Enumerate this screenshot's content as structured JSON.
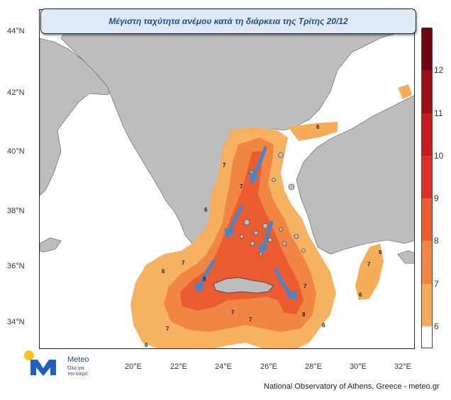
{
  "title": "Μέγιστη ταχύτητα ανέμου κατά τη διάρκεια της Τρίτης 20/12",
  "lat_labels": [
    "44°N",
    "42°N",
    "40°N",
    "38°N",
    "36°N",
    "34°N"
  ],
  "lon_labels": [
    "20°E",
    "22°E",
    "24°E",
    "26°E",
    "28°E",
    "30°E",
    "32°E"
  ],
  "colorbar": {
    "values": [
      6,
      7,
      8,
      9,
      10,
      11,
      12
    ],
    "colors": [
      "#ffffff",
      "#f6ad58",
      "#f18644",
      "#ec5c33",
      "#de3126",
      "#c31b1e",
      "#9c0e1a",
      "#6e0712"
    ]
  },
  "map_labels": [
    "6",
    "7",
    "8"
  ],
  "logo": {
    "word": "Meteo",
    "tagline_1": "Όλα για",
    "tagline_2": "τον καιρό"
  },
  "credit": "National Observatory of Athens, Greece - meteo.gr",
  "colors": {
    "land": "#bdbdbd",
    "arrow": "#4a86c5",
    "title_text": "#1f4f8a",
    "title_bg": "#dfe9f6"
  }
}
